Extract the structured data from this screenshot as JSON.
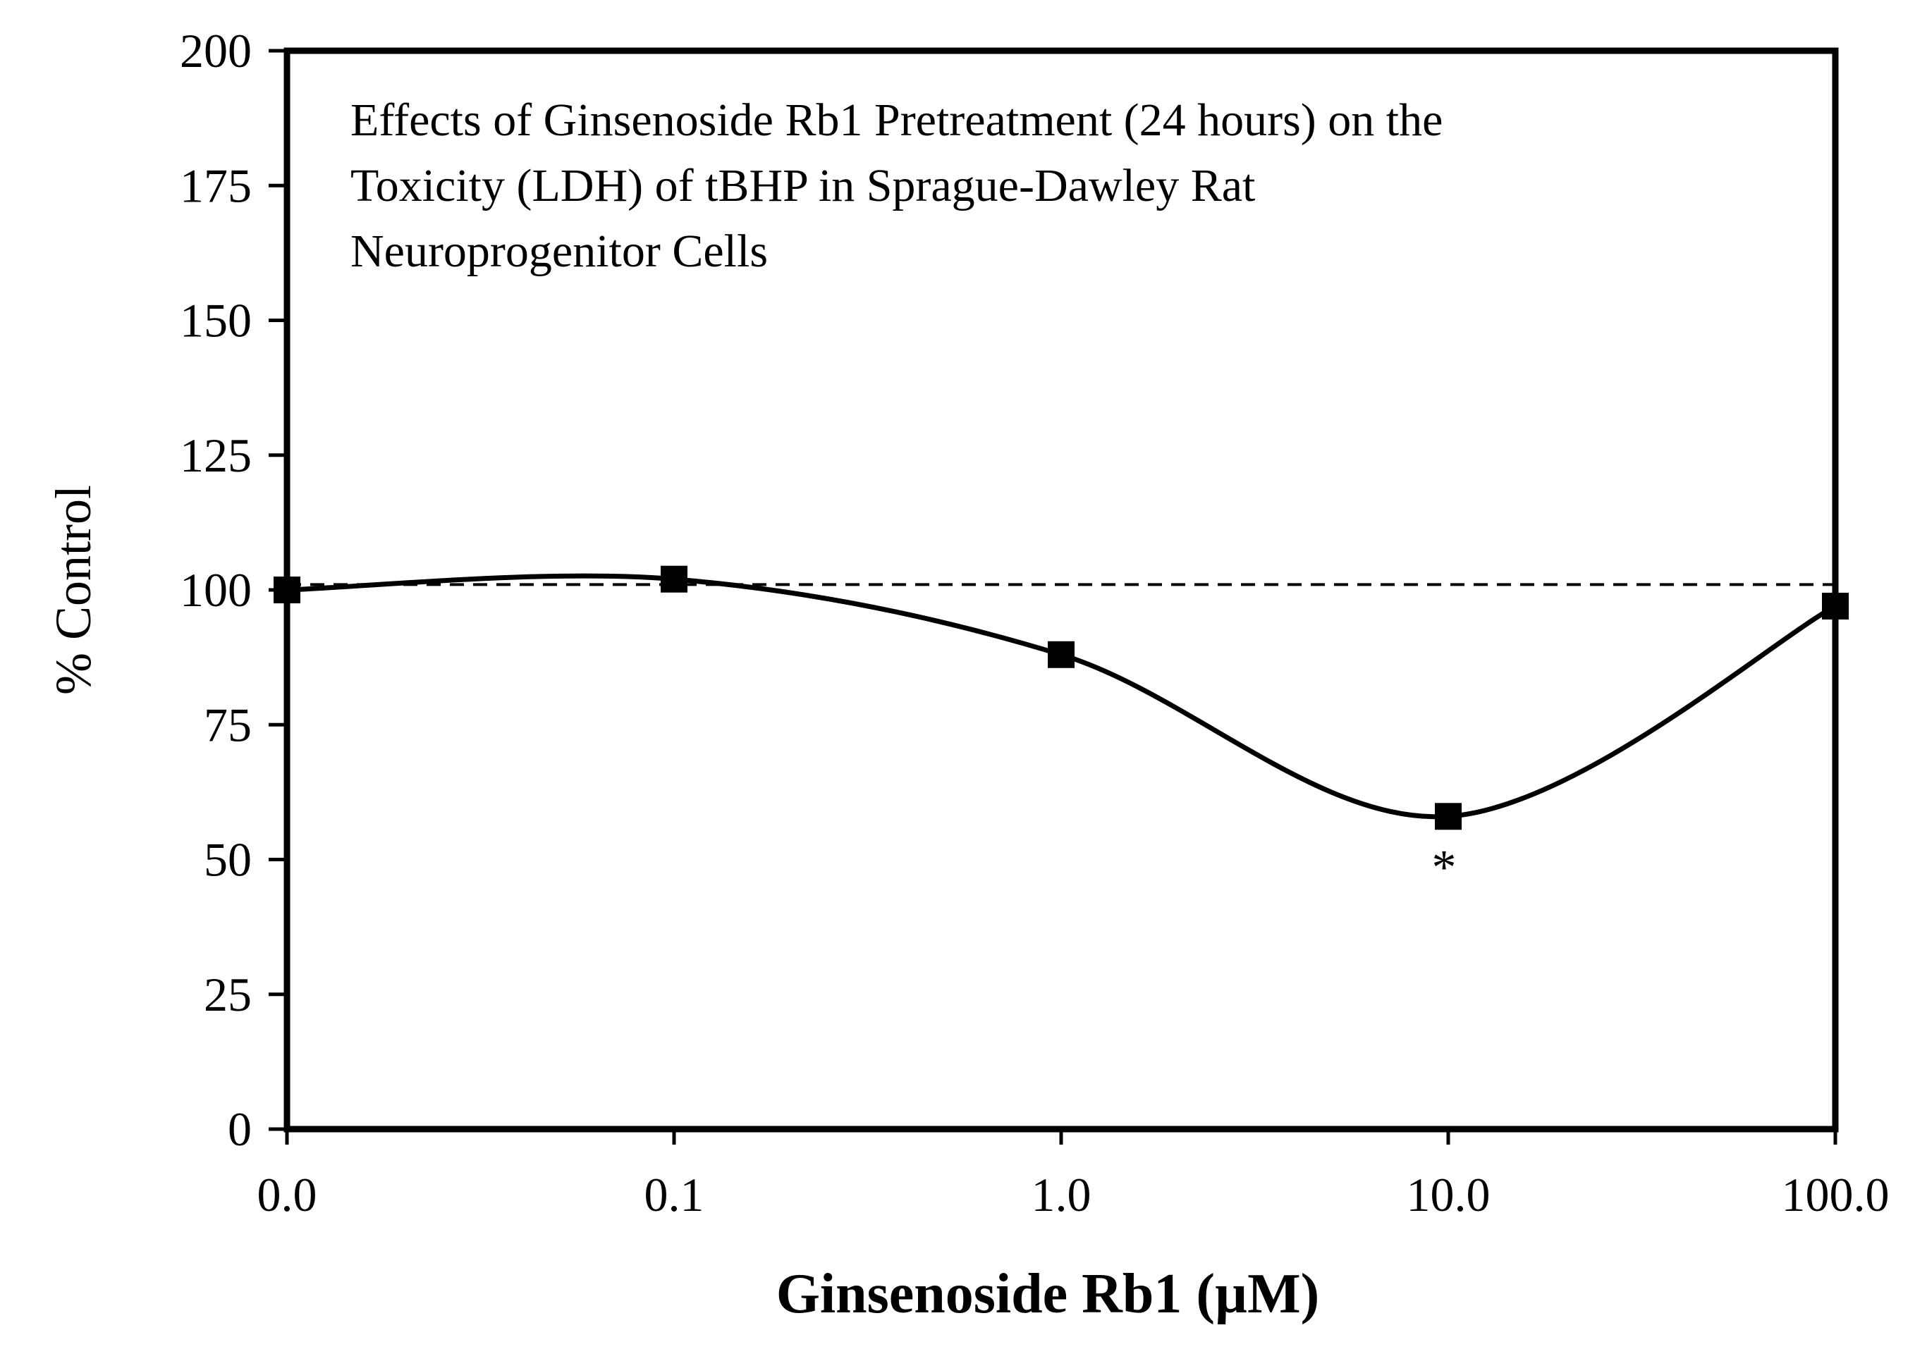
{
  "chart_data": {
    "type": "line",
    "title": [
      "Effects of Ginsenoside Rb1 Pretreatment (24 hours) on the",
      "Toxicity (LDH) of tBHP in Sprague-Dawley Rat",
      "Neuroprogenitor Cells"
    ],
    "xlabel": "Ginsenoside Rb1 (µM)",
    "ylabel": "% Control",
    "categories": [
      "0.0",
      "0.1",
      "1.0",
      "10.0",
      "100.0"
    ],
    "series": [
      {
        "values": [
          100,
          102,
          88,
          58,
          97
        ],
        "marker": "square",
        "line": "smooth",
        "color": "#000000"
      }
    ],
    "reference_line": {
      "y": 101,
      "style": "dashed"
    },
    "ylim": [
      0,
      200
    ],
    "yticks": [
      0,
      25,
      50,
      75,
      100,
      125,
      150,
      175,
      200
    ],
    "annotations": [
      {
        "text": "*",
        "category": "10.0"
      }
    ],
    "grid": false,
    "legend": "none"
  }
}
